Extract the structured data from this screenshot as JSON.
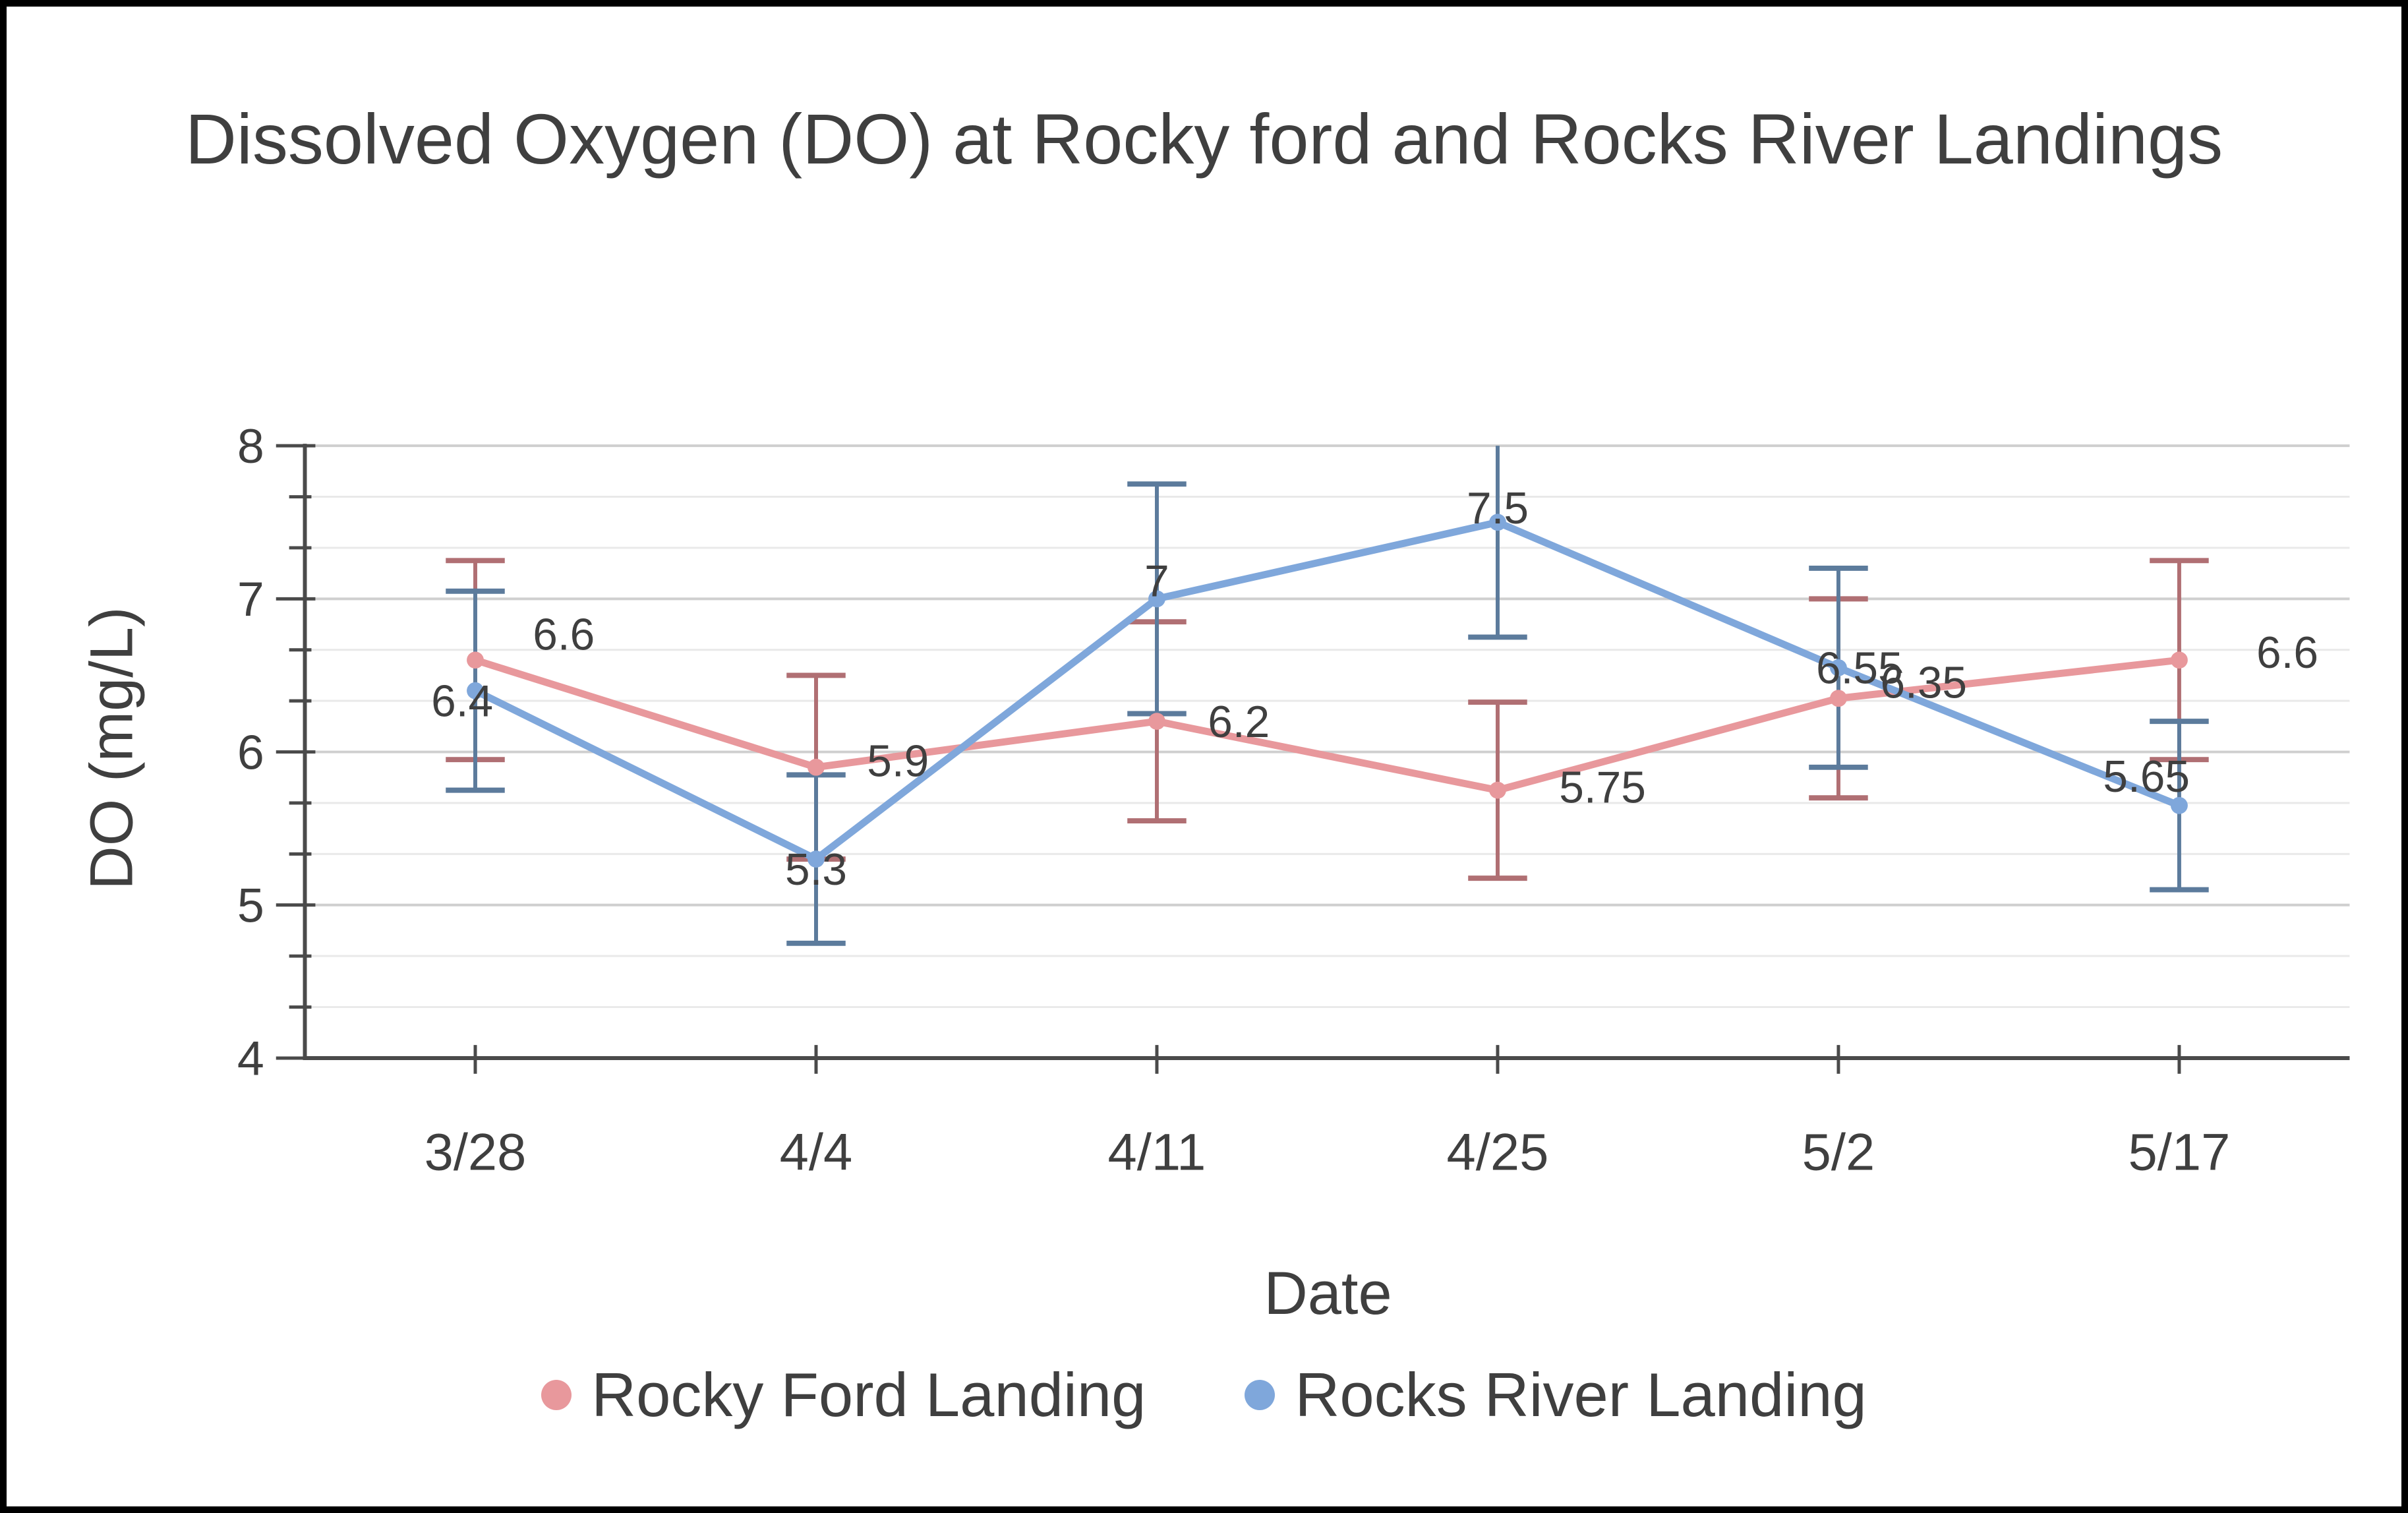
{
  "chart_data": {
    "type": "line",
    "title": "Dissolved Oxygen (DO) at Rocky ford and Rocks River Landings",
    "xlabel": "Date",
    "ylabel": "DO (mg/L)",
    "categories": [
      "3/28",
      "4/4",
      "4/11",
      "4/25",
      "5/2",
      "5/17"
    ],
    "ylim": [
      4,
      8
    ],
    "ytick_labels": [
      "8",
      "7",
      "6",
      "5",
      "4"
    ],
    "yticks_major": [
      8,
      7,
      6,
      5,
      4
    ],
    "y_minor_divisions_per_unit": 3,
    "grid": "on",
    "legend_position": "bottom",
    "series": [
      {
        "name": "Rocky Ford Landing",
        "color": "#E8989C",
        "error_color": "#B06F73",
        "values": [
          6.6,
          5.9,
          6.2,
          5.75,
          6.35,
          6.6
        ],
        "error_plus": [
          0.65,
          0.6,
          0.65,
          0.575,
          0.65,
          0.65
        ],
        "error_minus": [
          0.65,
          0.6,
          0.65,
          0.575,
          0.65,
          0.65
        ],
        "point_labels": [
          "6.6",
          "5.9",
          "6.2",
          "5.75",
          "6.35",
          "6.6"
        ],
        "label_offsets": [
          [
            135,
            -40
          ],
          [
            125,
            -10
          ],
          [
            125,
            0
          ],
          [
            160,
            -5
          ],
          [
            130,
            -25
          ],
          [
            165,
            -12
          ]
        ]
      },
      {
        "name": "Rocks River Landing",
        "color": "#7FA7DB",
        "error_color": "#5C7B9C",
        "values": [
          6.4,
          5.3,
          7,
          7.5,
          6.55,
          5.65
        ],
        "error_plus": [
          0.65,
          0.55,
          0.75,
          0.75,
          0.65,
          0.55
        ],
        "error_minus": [
          0.65,
          0.55,
          0.75,
          0.75,
          0.65,
          0.55
        ],
        "point_labels": [
          "6.4",
          "5.3",
          "7",
          "7.5",
          "6.55",
          "5.65"
        ],
        "label_offsets": [
          [
            -20,
            15
          ],
          [
            0,
            15
          ],
          [
            0,
            -28
          ],
          [
            0,
            -22
          ],
          [
            32,
            0
          ],
          [
            -50,
            -45
          ]
        ]
      }
    ],
    "colors": {
      "axis": "#4a4a4a",
      "text": "#3f3f3f",
      "grid_major": "#cfcfcf",
      "grid_minor": "#e9e9e9"
    }
  }
}
